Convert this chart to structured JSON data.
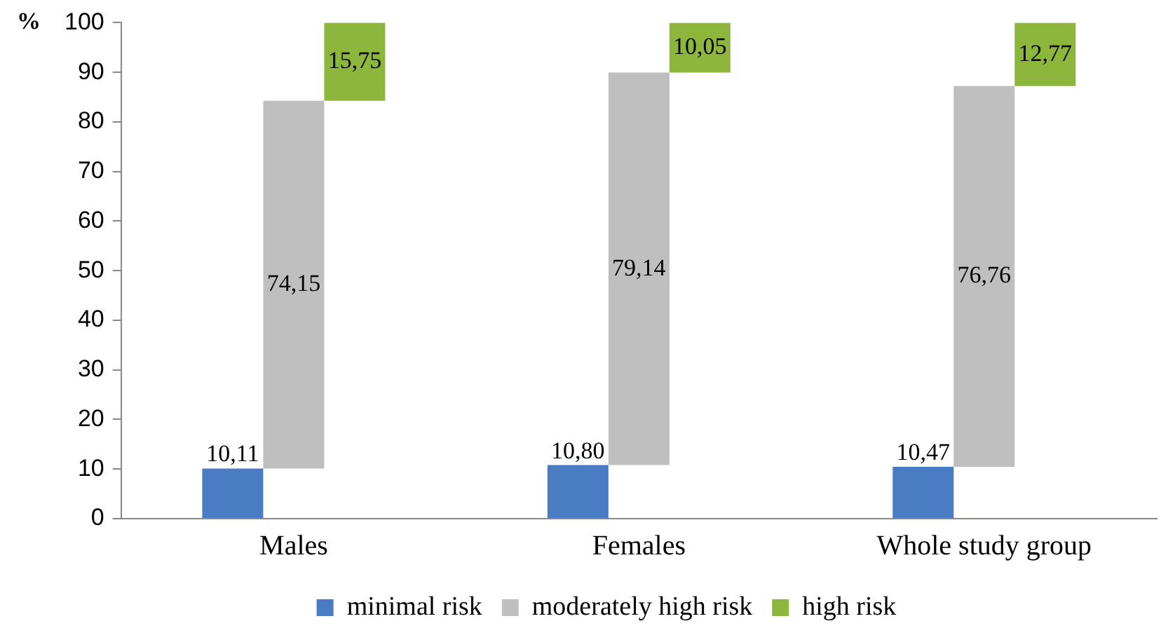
{
  "chart_data": {
    "type": "bar",
    "ylabel": "%",
    "categories": [
      "Males",
      "Females",
      "Whole study group"
    ],
    "series": [
      {
        "name": "minimal risk",
        "color": "#4a7cc3",
        "values": [
          10.11,
          10.8,
          10.47
        ],
        "base": [
          0,
          0,
          0
        ],
        "value_labels": [
          "10,11",
          "10,80",
          "10,47"
        ]
      },
      {
        "name": "moderately high risk",
        "color": "#bfbfbf",
        "values": [
          74.15,
          79.14,
          76.76
        ],
        "base": [
          10.11,
          10.8,
          10.47
        ],
        "value_labels": [
          "74,15",
          "79,14",
          "76,76"
        ]
      },
      {
        "name": "high risk",
        "color": "#8db63c",
        "values": [
          15.75,
          10.05,
          12.77
        ],
        "base": [
          84.26,
          89.94,
          87.23
        ],
        "value_labels": [
          "15,75",
          "10,05",
          "12,77"
        ]
      }
    ],
    "ylim": [
      0,
      100
    ],
    "yticks": [
      0,
      10,
      20,
      30,
      40,
      50,
      60,
      70,
      80,
      90,
      100
    ],
    "grid": false,
    "legend": "bottom"
  }
}
